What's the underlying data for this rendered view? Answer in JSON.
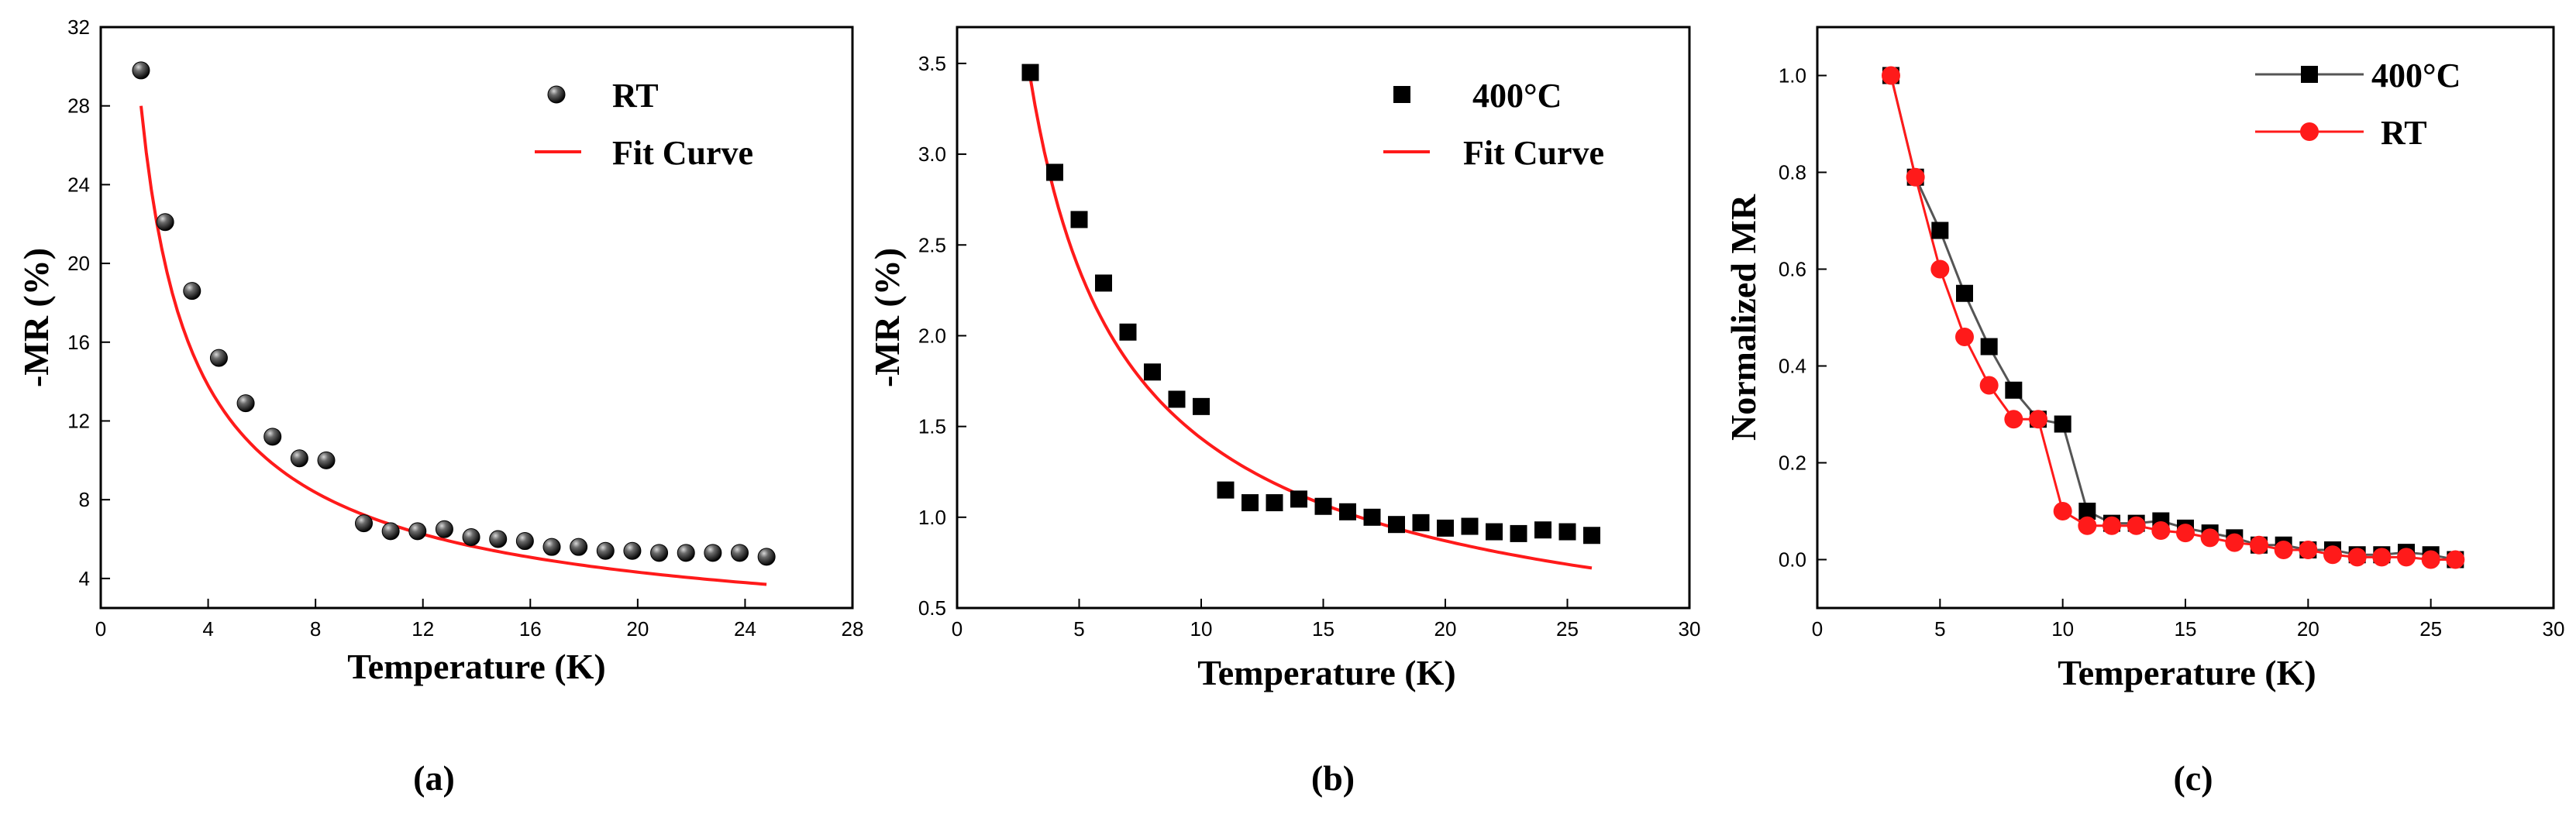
{
  "colors": {
    "fit": "#ff1a1a",
    "series_black": "#000000",
    "series_red": "#ff1a1a",
    "line_grey": "#555555"
  },
  "chart_data": [
    {
      "type": "scatter",
      "panel_label": "(a)",
      "xlabel": "Temperature (K)",
      "ylabel": "-MR (%)",
      "xlim": [
        0,
        28
      ],
      "ylim": [
        2.5,
        32
      ],
      "xticks": [
        0,
        4,
        8,
        12,
        16,
        20,
        24,
        28
      ],
      "xtick_labels": [
        "0",
        "4",
        "8",
        "12",
        "16",
        "20",
        "24",
        "28"
      ],
      "yticks": [
        4,
        8,
        12,
        16,
        20,
        24,
        28,
        32
      ],
      "ytick_labels": [
        "4",
        "8",
        "12",
        "16",
        "20",
        "24",
        "28",
        "32"
      ],
      "legend": [
        "RT",
        "Fit Curve"
      ],
      "series": [
        {
          "name": "RT",
          "marker": "sphere",
          "x": [
            1.5,
            2.4,
            3.4,
            4.4,
            5.4,
            6.4,
            7.4,
            8.4,
            9.8,
            10.8,
            11.8,
            12.8,
            13.8,
            14.8,
            15.8,
            16.8,
            17.8,
            18.8,
            19.8,
            20.8,
            21.8,
            22.8,
            23.8,
            24.8
          ],
          "y": [
            29.8,
            22.1,
            18.6,
            15.2,
            12.9,
            11.2,
            10.1,
            10.0,
            6.8,
            6.4,
            6.4,
            6.5,
            6.1,
            6.0,
            5.9,
            5.6,
            5.6,
            5.4,
            5.4,
            5.3,
            5.3,
            5.3,
            5.3,
            5.1
          ]
        },
        {
          "name": "Fit Curve",
          "kind": "fit",
          "x_range": [
            1.5,
            24.8
          ],
          "y_start": 28.0,
          "y_end": 3.7
        }
      ]
    },
    {
      "type": "scatter",
      "panel_label": "(b)",
      "xlabel": "Temperature (K)",
      "ylabel": "-MR (%)",
      "xlim": [
        0,
        30
      ],
      "ylim": [
        0.5,
        3.7
      ],
      "xticks": [
        0,
        5,
        10,
        15,
        20,
        25,
        30
      ],
      "xtick_labels": [
        "0",
        "5",
        "10",
        "15",
        "20",
        "25",
        "30"
      ],
      "yticks": [
        0.5,
        1.0,
        1.5,
        2.0,
        2.5,
        3.0,
        3.5
      ],
      "ytick_labels": [
        "0.5",
        "1.0",
        "1.5",
        "2.0",
        "2.5",
        "3.0",
        "3.5"
      ],
      "legend": [
        "400°C",
        "Fit Curve"
      ],
      "series": [
        {
          "name": "400°C",
          "marker": "square",
          "x": [
            3,
            4,
            5,
            6,
            7,
            8,
            9,
            10,
            11,
            12,
            13,
            14,
            15,
            16,
            17,
            18,
            19,
            20,
            21,
            22,
            23,
            24,
            25,
            26
          ],
          "y": [
            3.45,
            2.9,
            2.64,
            2.29,
            2.02,
            1.8,
            1.65,
            1.61,
            1.15,
            1.08,
            1.08,
            1.1,
            1.06,
            1.03,
            1.0,
            0.96,
            0.97,
            0.94,
            0.95,
            0.92,
            0.91,
            0.93,
            0.92,
            0.9
          ]
        },
        {
          "name": "Fit Curve",
          "kind": "fit",
          "x_range": [
            3,
            26
          ],
          "y_start": 3.42,
          "y_end": 0.72
        }
      ]
    },
    {
      "type": "line",
      "panel_label": "(c)",
      "xlabel": "Temperature (K)",
      "ylabel": "Normalized MR",
      "xlim": [
        0,
        30
      ],
      "ylim": [
        -0.1,
        1.1
      ],
      "xticks": [
        0,
        5,
        10,
        15,
        20,
        25,
        30
      ],
      "xtick_labels": [
        "0",
        "5",
        "10",
        "15",
        "20",
        "25",
        "30"
      ],
      "yticks": [
        0.0,
        0.2,
        0.4,
        0.6,
        0.8,
        1.0
      ],
      "ytick_labels": [
        "0.0",
        "0.2",
        "0.4",
        "0.6",
        "0.8",
        "1.0"
      ],
      "legend": [
        "400°C",
        "RT"
      ],
      "series": [
        {
          "name": "400°C",
          "marker": "square",
          "x": [
            3,
            4,
            5,
            6,
            7,
            8,
            9,
            10,
            11,
            12,
            13,
            14,
            15,
            16,
            17,
            18,
            19,
            20,
            21,
            22,
            23,
            24,
            25,
            26
          ],
          "y": [
            1.0,
            0.79,
            0.68,
            0.55,
            0.44,
            0.35,
            0.29,
            0.28,
            0.1,
            0.075,
            0.075,
            0.08,
            0.065,
            0.055,
            0.045,
            0.03,
            0.03,
            0.02,
            0.02,
            0.01,
            0.01,
            0.015,
            0.01,
            0.0
          ]
        },
        {
          "name": "RT",
          "marker": "circle",
          "x": [
            3,
            4,
            5,
            6,
            7,
            8,
            9,
            10,
            11,
            12,
            13,
            14,
            15,
            16,
            17,
            18,
            19,
            20,
            21,
            22,
            23,
            24,
            25,
            26
          ],
          "y": [
            1.0,
            0.79,
            0.6,
            0.46,
            0.36,
            0.29,
            0.29,
            0.1,
            0.07,
            0.07,
            0.07,
            0.06,
            0.055,
            0.045,
            0.035,
            0.03,
            0.02,
            0.02,
            0.01,
            0.005,
            0.005,
            0.005,
            0.0,
            0.0
          ]
        }
      ]
    }
  ]
}
